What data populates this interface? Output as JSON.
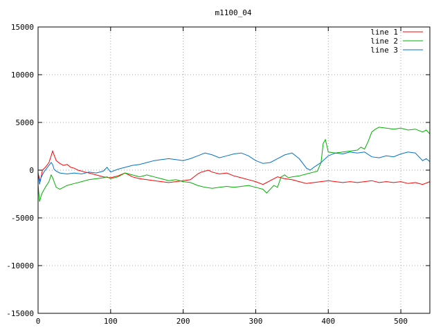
{
  "chart_data": {
    "type": "line",
    "title": "m1100_04",
    "xlabel": "",
    "ylabel": "",
    "xlim": [
      0,
      540
    ],
    "ylim": [
      -15000,
      15000
    ],
    "x_ticks": [
      0,
      100,
      200,
      300,
      400,
      500
    ],
    "y_ticks": [
      -15000,
      -10000,
      -5000,
      0,
      5000,
      10000,
      15000
    ],
    "grid": true,
    "legend_position": "top-right",
    "series": [
      {
        "name": "line 1",
        "color": "#ff0000",
        "points": [
          [
            0,
            -300
          ],
          [
            3,
            -1200
          ],
          [
            6,
            0
          ],
          [
            10,
            300
          ],
          [
            15,
            800
          ],
          [
            18,
            1500
          ],
          [
            20,
            2000
          ],
          [
            22,
            1600
          ],
          [
            25,
            1000
          ],
          [
            30,
            700
          ],
          [
            35,
            500
          ],
          [
            40,
            600
          ],
          [
            45,
            300
          ],
          [
            50,
            200
          ],
          [
            55,
            0
          ],
          [
            60,
            -100
          ],
          [
            65,
            -200
          ],
          [
            70,
            -300
          ],
          [
            80,
            -500
          ],
          [
            90,
            -700
          ],
          [
            100,
            -800
          ],
          [
            110,
            -600
          ],
          [
            120,
            -300
          ],
          [
            130,
            -700
          ],
          [
            140,
            -900
          ],
          [
            150,
            -1000
          ],
          [
            160,
            -1100
          ],
          [
            170,
            -1200
          ],
          [
            180,
            -1300
          ],
          [
            190,
            -1200
          ],
          [
            200,
            -1100
          ],
          [
            210,
            -1000
          ],
          [
            220,
            -400
          ],
          [
            225,
            -200
          ],
          [
            230,
            -100
          ],
          [
            235,
            0
          ],
          [
            240,
            -200
          ],
          [
            250,
            -400
          ],
          [
            260,
            -300
          ],
          [
            270,
            -600
          ],
          [
            280,
            -800
          ],
          [
            290,
            -1000
          ],
          [
            300,
            -1200
          ],
          [
            310,
            -1500
          ],
          [
            320,
            -1100
          ],
          [
            330,
            -700
          ],
          [
            340,
            -900
          ],
          [
            350,
            -1000
          ],
          [
            360,
            -1200
          ],
          [
            370,
            -1400
          ],
          [
            380,
            -1300
          ],
          [
            390,
            -1200
          ],
          [
            400,
            -1100
          ],
          [
            410,
            -1200
          ],
          [
            420,
            -1300
          ],
          [
            430,
            -1200
          ],
          [
            440,
            -1300
          ],
          [
            450,
            -1200
          ],
          [
            460,
            -1100
          ],
          [
            470,
            -1300
          ],
          [
            480,
            -1200
          ],
          [
            490,
            -1300
          ],
          [
            500,
            -1200
          ],
          [
            510,
            -1400
          ],
          [
            520,
            -1300
          ],
          [
            530,
            -1500
          ],
          [
            540,
            -1200
          ]
        ]
      },
      {
        "name": "line 2",
        "color": "#00b000",
        "points": [
          [
            0,
            -1500
          ],
          [
            2,
            -3300
          ],
          [
            5,
            -2500
          ],
          [
            10,
            -1800
          ],
          [
            15,
            -1200
          ],
          [
            18,
            -500
          ],
          [
            20,
            -800
          ],
          [
            25,
            -1800
          ],
          [
            30,
            -2000
          ],
          [
            40,
            -1600
          ],
          [
            50,
            -1400
          ],
          [
            60,
            -1200
          ],
          [
            70,
            -1000
          ],
          [
            80,
            -900
          ],
          [
            90,
            -800
          ],
          [
            95,
            -700
          ],
          [
            100,
            -900
          ],
          [
            110,
            -700
          ],
          [
            120,
            -300
          ],
          [
            130,
            -500
          ],
          [
            140,
            -700
          ],
          [
            150,
            -500
          ],
          [
            160,
            -700
          ],
          [
            170,
            -900
          ],
          [
            180,
            -1100
          ],
          [
            190,
            -1000
          ],
          [
            200,
            -1200
          ],
          [
            210,
            -1300
          ],
          [
            220,
            -1600
          ],
          [
            230,
            -1800
          ],
          [
            240,
            -1900
          ],
          [
            250,
            -1800
          ],
          [
            260,
            -1700
          ],
          [
            270,
            -1800
          ],
          [
            280,
            -1700
          ],
          [
            290,
            -1600
          ],
          [
            300,
            -1800
          ],
          [
            310,
            -2000
          ],
          [
            315,
            -2400
          ],
          [
            320,
            -2000
          ],
          [
            325,
            -1600
          ],
          [
            330,
            -1800
          ],
          [
            335,
            -700
          ],
          [
            340,
            -500
          ],
          [
            345,
            -800
          ],
          [
            350,
            -700
          ],
          [
            360,
            -600
          ],
          [
            370,
            -400
          ],
          [
            380,
            -200
          ],
          [
            385,
            -100
          ],
          [
            390,
            800
          ],
          [
            393,
            2800
          ],
          [
            396,
            3200
          ],
          [
            400,
            1900
          ],
          [
            410,
            1800
          ],
          [
            420,
            1900
          ],
          [
            430,
            2000
          ],
          [
            440,
            2100
          ],
          [
            445,
            2400
          ],
          [
            450,
            2200
          ],
          [
            455,
            3000
          ],
          [
            460,
            4000
          ],
          [
            465,
            4300
          ],
          [
            470,
            4500
          ],
          [
            480,
            4400
          ],
          [
            490,
            4300
          ],
          [
            500,
            4400
          ],
          [
            510,
            4200
          ],
          [
            520,
            4300
          ],
          [
            530,
            4000
          ],
          [
            535,
            4200
          ],
          [
            540,
            3800
          ]
        ]
      },
      {
        "name": "line 3",
        "color": "#0070d0",
        "points": [
          [
            0,
            -200
          ],
          [
            2,
            -1500
          ],
          [
            4,
            -800
          ],
          [
            8,
            -200
          ],
          [
            12,
            200
          ],
          [
            15,
            500
          ],
          [
            18,
            800
          ],
          [
            20,
            600
          ],
          [
            22,
            100
          ],
          [
            25,
            -100
          ],
          [
            30,
            -300
          ],
          [
            40,
            -400
          ],
          [
            50,
            -300
          ],
          [
            60,
            -400
          ],
          [
            70,
            -200
          ],
          [
            80,
            -300
          ],
          [
            90,
            -100
          ],
          [
            95,
            300
          ],
          [
            100,
            -200
          ],
          [
            110,
            100
          ],
          [
            120,
            300
          ],
          [
            130,
            500
          ],
          [
            140,
            600
          ],
          [
            150,
            800
          ],
          [
            160,
            1000
          ],
          [
            170,
            1100
          ],
          [
            180,
            1200
          ],
          [
            190,
            1100
          ],
          [
            200,
            1000
          ],
          [
            210,
            1200
          ],
          [
            220,
            1500
          ],
          [
            230,
            1800
          ],
          [
            240,
            1600
          ],
          [
            250,
            1300
          ],
          [
            260,
            1500
          ],
          [
            270,
            1700
          ],
          [
            280,
            1800
          ],
          [
            290,
            1500
          ],
          [
            300,
            1000
          ],
          [
            310,
            700
          ],
          [
            320,
            800
          ],
          [
            330,
            1200
          ],
          [
            340,
            1600
          ],
          [
            350,
            1800
          ],
          [
            360,
            1200
          ],
          [
            370,
            200
          ],
          [
            375,
            0
          ],
          [
            380,
            300
          ],
          [
            390,
            800
          ],
          [
            400,
            1500
          ],
          [
            410,
            1800
          ],
          [
            420,
            1700
          ],
          [
            430,
            1900
          ],
          [
            440,
            1800
          ],
          [
            450,
            1900
          ],
          [
            460,
            1400
          ],
          [
            470,
            1300
          ],
          [
            480,
            1500
          ],
          [
            490,
            1400
          ],
          [
            500,
            1700
          ],
          [
            510,
            1900
          ],
          [
            520,
            1800
          ],
          [
            530,
            1000
          ],
          [
            535,
            1200
          ],
          [
            540,
            900
          ]
        ]
      }
    ]
  }
}
